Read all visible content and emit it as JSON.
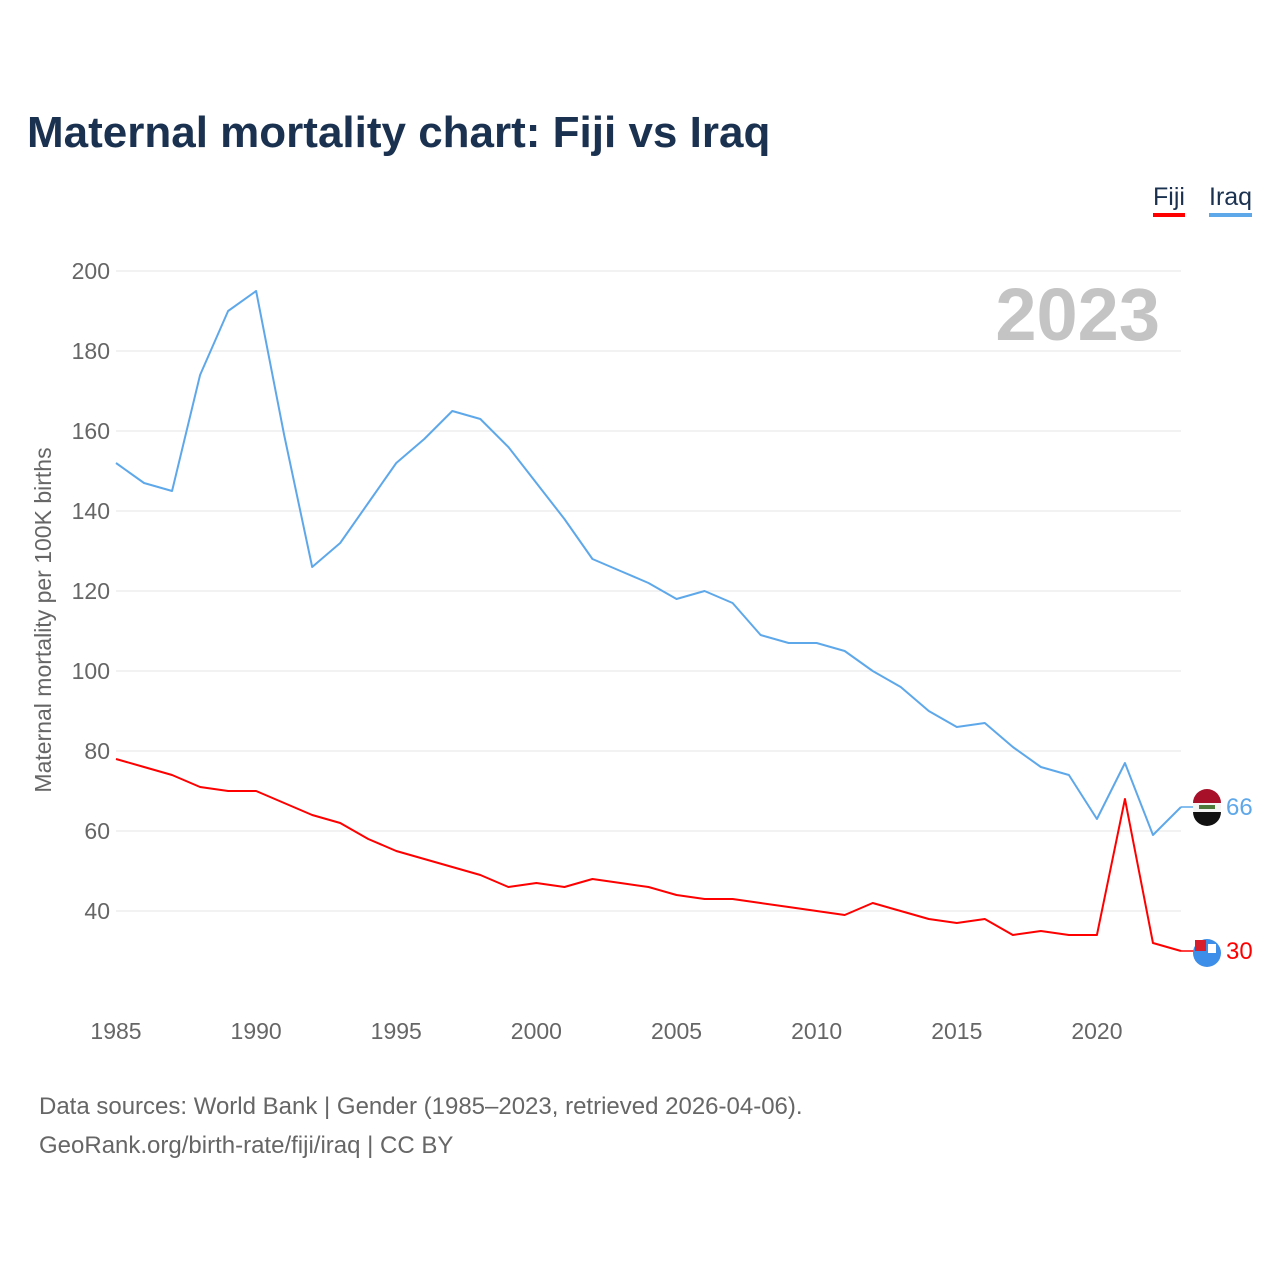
{
  "chart_data": {
    "type": "line",
    "title": "Maternal mortality chart: Fiji vs Iraq",
    "ylabel": "Maternal mortality per 100K births",
    "xlabel": "",
    "year_watermark": "2023",
    "ylim": [
      20,
      200
    ],
    "xlim": [
      1985,
      2023
    ],
    "yticks": [
      40,
      60,
      80,
      100,
      120,
      140,
      160,
      180,
      200
    ],
    "xticks": [
      1985,
      1990,
      1995,
      2000,
      2005,
      2010,
      2015,
      2020
    ],
    "grid": true,
    "legend_position": "top-right",
    "x": [
      1985,
      1986,
      1987,
      1988,
      1989,
      1990,
      1991,
      1992,
      1993,
      1994,
      1995,
      1996,
      1997,
      1998,
      1999,
      2000,
      2001,
      2002,
      2003,
      2004,
      2005,
      2006,
      2007,
      2008,
      2009,
      2010,
      2011,
      2012,
      2013,
      2014,
      2015,
      2016,
      2017,
      2018,
      2019,
      2020,
      2021,
      2022,
      2023
    ],
    "series": [
      {
        "name": "Fiji",
        "color": "#ff0000",
        "end_label": "30",
        "values": [
          78,
          76,
          74,
          71,
          70,
          70,
          67,
          64,
          62,
          58,
          55,
          53,
          51,
          49,
          46,
          47,
          46,
          48,
          47,
          46,
          44,
          43,
          43,
          42,
          41,
          40,
          39,
          42,
          40,
          38,
          37,
          38,
          34,
          35,
          34,
          34,
          68,
          32,
          30
        ]
      },
      {
        "name": "Iraq",
        "color": "#5ea8ea",
        "end_label": "66",
        "values": [
          152,
          147,
          145,
          174,
          190,
          195,
          159,
          126,
          132,
          142,
          152,
          158,
          165,
          163,
          156,
          147,
          138,
          128,
          125,
          122,
          118,
          120,
          117,
          109,
          107,
          107,
          105,
          100,
          96,
          90,
          86,
          87,
          81,
          76,
          74,
          63,
          77,
          59,
          66
        ]
      }
    ]
  },
  "footer": {
    "line1": "Data sources: World Bank | Gender (1985–2023, retrieved 2026-04-06).",
    "line2": "GeoRank.org/birth-rate/fiji/iraq | CC BY"
  }
}
